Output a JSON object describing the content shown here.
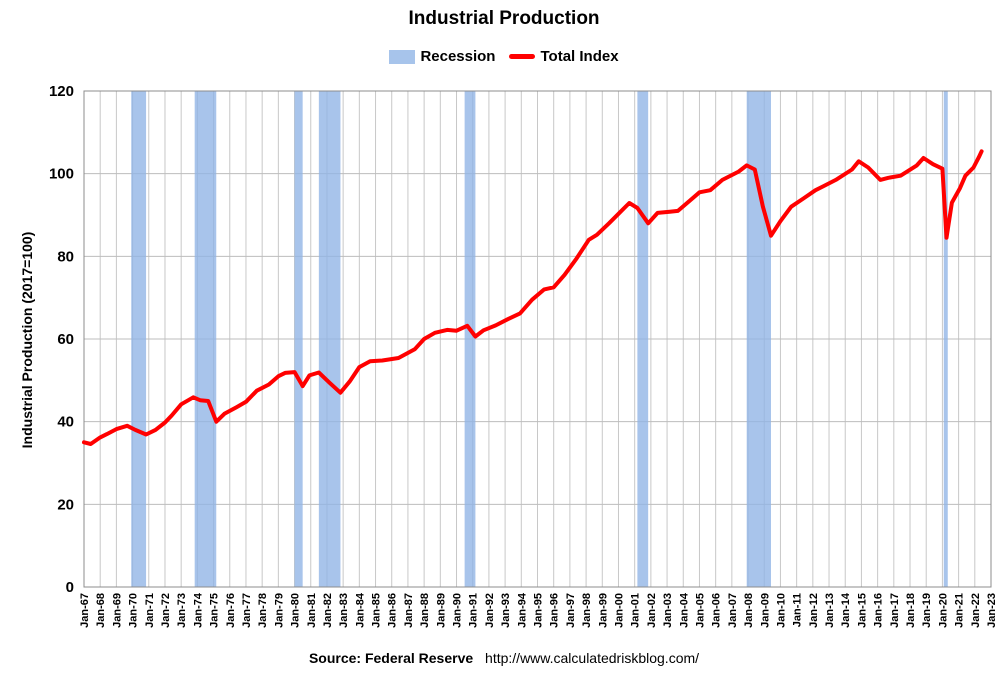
{
  "chart_data": {
    "type": "line",
    "title": "Industrial Production",
    "ylabel": "Industrial Production (2017=100)",
    "xlabel": "",
    "ylim": [
      0,
      120
    ],
    "yticks": [
      0,
      20,
      40,
      60,
      80,
      100,
      120
    ],
    "xlim": [
      "1967-01",
      "2023-01"
    ],
    "xtick_labels": [
      "Jan-67",
      "Jan-68",
      "Jan-69",
      "Jan-70",
      "Jan-71",
      "Jan-72",
      "Jan-73",
      "Jan-74",
      "Jan-75",
      "Jan-76",
      "Jan-77",
      "Jan-78",
      "Jan-79",
      "Jan-80",
      "Jan-81",
      "Jan-82",
      "Jan-83",
      "Jan-84",
      "Jan-85",
      "Jan-86",
      "Jan-87",
      "Jan-88",
      "Jan-89",
      "Jan-90",
      "Jan-91",
      "Jan-92",
      "Jan-93",
      "Jan-94",
      "Jan-95",
      "Jan-96",
      "Jan-97",
      "Jan-98",
      "Jan-99",
      "Jan-00",
      "Jan-01",
      "Jan-02",
      "Jan-03",
      "Jan-04",
      "Jan-05",
      "Jan-06",
      "Jan-07",
      "Jan-08",
      "Jan-09",
      "Jan-10",
      "Jan-11",
      "Jan-12",
      "Jan-13",
      "Jan-14",
      "Jan-15",
      "Jan-16",
      "Jan-17",
      "Jan-18",
      "Jan-19",
      "Jan-20",
      "Jan-21",
      "Jan-22",
      "Jan-23"
    ],
    "grid": true,
    "legend_position": "top-center",
    "legend": [
      "Recession",
      "Total Index"
    ],
    "recessions": [
      {
        "start": "1969-12",
        "end": "1970-11"
      },
      {
        "start": "1973-11",
        "end": "1975-03"
      },
      {
        "start": "1980-01",
        "end": "1980-07"
      },
      {
        "start": "1981-07",
        "end": "1982-11"
      },
      {
        "start": "1990-07",
        "end": "1991-03"
      },
      {
        "start": "2001-03",
        "end": "2001-11"
      },
      {
        "start": "2007-12",
        "end": "2009-06"
      },
      {
        "start": "2020-02",
        "end": "2020-04"
      }
    ],
    "series": [
      {
        "name": "Total Index",
        "color": "#ff0000",
        "points": [
          [
            "1967-01",
            35.0
          ],
          [
            "1967-06",
            34.6
          ],
          [
            "1968-01",
            36.2
          ],
          [
            "1968-06",
            37.0
          ],
          [
            "1969-01",
            38.2
          ],
          [
            "1969-09",
            39.0
          ],
          [
            "1970-03",
            38.0
          ],
          [
            "1970-11",
            36.9
          ],
          [
            "1971-06",
            38.0
          ],
          [
            "1972-01",
            39.8
          ],
          [
            "1972-06",
            41.5
          ],
          [
            "1973-01",
            44.2
          ],
          [
            "1973-10",
            45.9
          ],
          [
            "1974-03",
            45.2
          ],
          [
            "1974-09",
            45.0
          ],
          [
            "1975-03",
            40.0
          ],
          [
            "1975-09",
            41.9
          ],
          [
            "1976-06",
            43.5
          ],
          [
            "1977-01",
            44.8
          ],
          [
            "1977-09",
            47.5
          ],
          [
            "1978-06",
            49.0
          ],
          [
            "1979-01",
            51.0
          ],
          [
            "1979-06",
            51.8
          ],
          [
            "1980-01",
            52.0
          ],
          [
            "1980-07",
            48.6
          ],
          [
            "1980-12",
            51.2
          ],
          [
            "1981-07",
            51.9
          ],
          [
            "1982-03",
            49.4
          ],
          [
            "1982-11",
            47.0
          ],
          [
            "1983-06",
            49.8
          ],
          [
            "1984-01",
            53.2
          ],
          [
            "1984-09",
            54.6
          ],
          [
            "1985-06",
            54.8
          ],
          [
            "1986-06",
            55.4
          ],
          [
            "1987-06",
            57.5
          ],
          [
            "1988-01",
            60.0
          ],
          [
            "1988-09",
            61.5
          ],
          [
            "1989-06",
            62.2
          ],
          [
            "1990-01",
            62.0
          ],
          [
            "1990-09",
            63.2
          ],
          [
            "1991-03",
            60.6
          ],
          [
            "1991-09",
            62.1
          ],
          [
            "1992-06",
            63.3
          ],
          [
            "1993-03",
            64.8
          ],
          [
            "1993-12",
            66.2
          ],
          [
            "1994-09",
            69.5
          ],
          [
            "1995-06",
            72.0
          ],
          [
            "1996-01",
            72.5
          ],
          [
            "1996-09",
            75.5
          ],
          [
            "1997-06",
            79.5
          ],
          [
            "1998-03",
            84.0
          ],
          [
            "1998-09",
            85.2
          ],
          [
            "1999-06",
            88.0
          ],
          [
            "2000-01",
            90.3
          ],
          [
            "2000-09",
            92.9
          ],
          [
            "2001-03",
            91.7
          ],
          [
            "2001-11",
            88.0
          ],
          [
            "2002-06",
            90.5
          ],
          [
            "2003-03",
            90.8
          ],
          [
            "2003-09",
            91.0
          ],
          [
            "2004-06",
            93.5
          ],
          [
            "2005-01",
            95.5
          ],
          [
            "2005-09",
            96.0
          ],
          [
            "2006-06",
            98.5
          ],
          [
            "2007-06",
            100.5
          ],
          [
            "2007-12",
            102.0
          ],
          [
            "2008-06",
            101.0
          ],
          [
            "2008-12",
            92.0
          ],
          [
            "2009-06",
            85.0
          ],
          [
            "2010-01",
            88.5
          ],
          [
            "2010-09",
            92.0
          ],
          [
            "2011-06",
            94.0
          ],
          [
            "2012-03",
            96.0
          ],
          [
            "2012-09",
            97.0
          ],
          [
            "2013-06",
            98.5
          ],
          [
            "2014-06",
            101.0
          ],
          [
            "2014-11",
            103.0
          ],
          [
            "2015-06",
            101.5
          ],
          [
            "2016-03",
            98.5
          ],
          [
            "2016-09",
            99.0
          ],
          [
            "2017-06",
            99.5
          ],
          [
            "2018-06",
            102.0
          ],
          [
            "2018-11",
            103.8
          ],
          [
            "2019-06",
            102.3
          ],
          [
            "2020-01",
            101.2
          ],
          [
            "2020-04",
            84.5
          ],
          [
            "2020-08",
            93.0
          ],
          [
            "2021-02",
            96.5
          ],
          [
            "2021-06",
            99.5
          ],
          [
            "2021-12",
            101.5
          ],
          [
            "2022-04",
            104.0
          ],
          [
            "2022-06",
            105.4
          ]
        ]
      }
    ]
  },
  "source": {
    "label": "Source: Federal Reserve",
    "url": "http://www.calculatedriskblog.com/"
  }
}
